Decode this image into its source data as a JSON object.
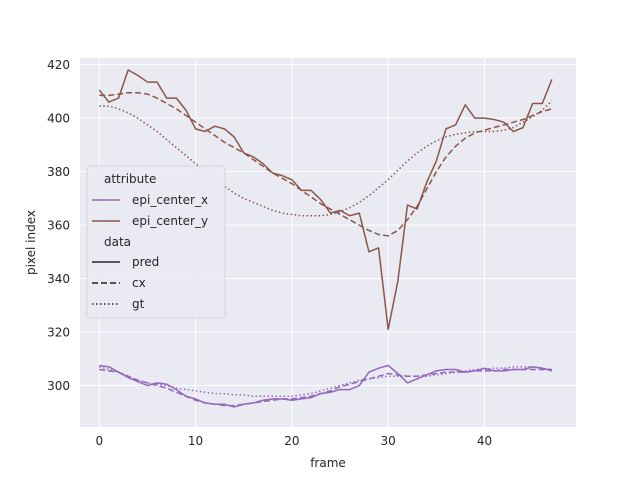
{
  "chart_data": {
    "type": "line",
    "title": "",
    "xlabel": "frame",
    "ylabel": "pixel index",
    "xlim": [
      -2,
      49.5
    ],
    "ylim": [
      284.5,
      422.5
    ],
    "xticks": [
      0,
      10,
      20,
      30,
      40
    ],
    "yticks": [
      300,
      320,
      340,
      360,
      380,
      400,
      420
    ],
    "grid": true,
    "colors": {
      "epi_center_x": "#9467bd",
      "epi_center_y": "#8c564b",
      "background": "#eaeaf2",
      "grid": "#ffffff"
    },
    "legend": {
      "placement": "center-left",
      "hue_title": "attribute",
      "hue_entries": [
        "epi_center_x",
        "epi_center_y"
      ],
      "style_title": "data",
      "style_entries": [
        "pred",
        "cx",
        "gt"
      ]
    },
    "series": [
      {
        "name": "epi_center_y",
        "attribute": "epi_center_y",
        "data": "pred",
        "x": [
          0,
          1,
          2,
          3,
          4,
          5,
          6,
          7,
          8,
          9,
          10,
          11,
          12,
          13,
          14,
          15,
          16,
          17,
          18,
          19,
          20,
          21,
          22,
          23,
          24,
          25,
          26,
          27,
          28,
          29,
          30,
          31,
          32,
          33,
          34,
          35,
          36,
          37,
          38,
          39,
          40,
          41,
          42,
          43,
          44,
          45,
          46,
          47
        ],
        "values": [
          410.5,
          406,
          407.5,
          418,
          416,
          413.5,
          413.5,
          407.5,
          407.5,
          403,
          396,
          395,
          397,
          396,
          393,
          387,
          385.5,
          383,
          379.5,
          378.5,
          377,
          373,
          373,
          369.5,
          364.5,
          365.5,
          363.5,
          364.5,
          350,
          351.5,
          321,
          339,
          367.5,
          366,
          376,
          384,
          396,
          397.5,
          405,
          400,
          400,
          399.5,
          398.5,
          395,
          396.5,
          405.5,
          405.5,
          414.5
        ]
      },
      {
        "name": "epi_center_y",
        "attribute": "epi_center_y",
        "data": "cx",
        "x": [
          0,
          1,
          2,
          3,
          4,
          5,
          6,
          7,
          8,
          9,
          10,
          11,
          12,
          13,
          14,
          15,
          16,
          17,
          18,
          19,
          20,
          21,
          22,
          23,
          24,
          25,
          26,
          27,
          28,
          29,
          30,
          31,
          32,
          33,
          34,
          35,
          36,
          37,
          38,
          39,
          40,
          41,
          42,
          43,
          44,
          45,
          46,
          47
        ],
        "values": [
          408.5,
          408.5,
          409,
          409.5,
          409.5,
          409,
          407.5,
          405.5,
          403.5,
          401,
          398.5,
          396,
          393.5,
          391,
          389,
          387,
          384.5,
          382,
          379.5,
          377.5,
          375.5,
          373,
          370.5,
          368,
          366,
          364,
          362,
          360,
          358,
          356.5,
          356,
          358,
          362,
          367,
          373.5,
          380,
          385.5,
          389.5,
          392.5,
          394.5,
          395.5,
          396.5,
          397.5,
          398.5,
          399.5,
          401,
          402.5,
          403.5
        ]
      },
      {
        "name": "epi_center_y",
        "attribute": "epi_center_y",
        "data": "gt",
        "x": [
          0,
          1,
          2,
          3,
          4,
          5,
          6,
          7,
          8,
          9,
          10,
          11,
          12,
          13,
          14,
          15,
          16,
          17,
          18,
          19,
          20,
          21,
          22,
          23,
          24,
          25,
          26,
          27,
          28,
          29,
          30,
          31,
          32,
          33,
          34,
          35,
          36,
          37,
          38,
          39,
          40,
          41,
          42,
          43,
          44,
          45,
          46,
          47
        ],
        "values": [
          404.5,
          404.5,
          403.5,
          402,
          400,
          397.5,
          395,
          392,
          389,
          386,
          383,
          380,
          377,
          374.5,
          372,
          370,
          368.5,
          367,
          365.5,
          364.5,
          364,
          363.5,
          363.5,
          363.5,
          364,
          365,
          366.5,
          368.5,
          371,
          374,
          377,
          380.5,
          384,
          387,
          389.5,
          391.5,
          393,
          394,
          394.5,
          395,
          395,
          395,
          395.5,
          396.5,
          398.5,
          400.5,
          403,
          406.5
        ]
      },
      {
        "name": "epi_center_x",
        "attribute": "epi_center_x",
        "data": "pred",
        "x": [
          0,
          1,
          2,
          3,
          4,
          5,
          6,
          7,
          8,
          9,
          10,
          11,
          12,
          13,
          14,
          15,
          16,
          17,
          18,
          19,
          20,
          21,
          22,
          23,
          24,
          25,
          26,
          27,
          28,
          29,
          30,
          31,
          32,
          33,
          34,
          35,
          36,
          37,
          38,
          39,
          40,
          41,
          42,
          43,
          44,
          45,
          46,
          47
        ],
        "values": [
          307.5,
          307,
          305,
          303,
          301.5,
          300,
          301,
          300.5,
          298.5,
          296,
          295,
          293.5,
          293,
          293,
          292,
          293,
          293.5,
          294.5,
          295,
          295,
          294.5,
          295,
          295.5,
          297,
          297.5,
          298.5,
          298.5,
          300,
          305,
          306.5,
          307.5,
          304.5,
          301,
          302.5,
          304,
          305.5,
          306,
          306,
          305,
          305.5,
          306.5,
          305.5,
          305.5,
          306,
          306,
          307,
          306.5,
          305.5
        ]
      },
      {
        "name": "epi_center_x",
        "attribute": "epi_center_x",
        "data": "cx",
        "x": [
          0,
          1,
          2,
          3,
          4,
          5,
          6,
          7,
          8,
          9,
          10,
          11,
          12,
          13,
          14,
          15,
          16,
          17,
          18,
          19,
          20,
          21,
          22,
          23,
          24,
          25,
          26,
          27,
          28,
          29,
          30,
          31,
          32,
          33,
          34,
          35,
          36,
          37,
          38,
          39,
          40,
          41,
          42,
          43,
          44,
          45,
          46,
          47
        ],
        "values": [
          306,
          305.5,
          305,
          303.5,
          302,
          301,
          300,
          299,
          297.5,
          296,
          294.5,
          293.5,
          293,
          292.5,
          292.5,
          293,
          293.5,
          294,
          294.5,
          295,
          295,
          295.5,
          296,
          297,
          298,
          299.5,
          300.5,
          301.5,
          302.5,
          303.5,
          304.5,
          304,
          303.5,
          303.5,
          304,
          304.5,
          305,
          305,
          305,
          305.5,
          305.5,
          305.5,
          306,
          306,
          306,
          306,
          306,
          306
        ]
      },
      {
        "name": "epi_center_x",
        "attribute": "epi_center_x",
        "data": "gt",
        "x": [
          0,
          1,
          2,
          3,
          4,
          5,
          6,
          7,
          8,
          9,
          10,
          11,
          12,
          13,
          14,
          15,
          16,
          17,
          18,
          19,
          20,
          21,
          22,
          23,
          24,
          25,
          26,
          27,
          28,
          29,
          30,
          31,
          32,
          33,
          34,
          35,
          36,
          37,
          38,
          39,
          40,
          41,
          42,
          43,
          44,
          45,
          46,
          47
        ],
        "values": [
          307,
          306,
          305,
          303.5,
          302,
          301,
          300.5,
          300,
          299,
          298.5,
          298,
          297.5,
          297,
          297,
          296.5,
          296.5,
          296,
          296,
          296,
          296,
          296,
          296.5,
          297,
          298,
          299,
          300,
          301,
          302,
          302.5,
          303,
          303.5,
          303.5,
          303.5,
          303.5,
          303.5,
          304,
          304.5,
          305,
          305.5,
          306,
          306,
          306.5,
          306.5,
          307,
          307,
          307,
          306.5,
          306
        ]
      }
    ]
  }
}
